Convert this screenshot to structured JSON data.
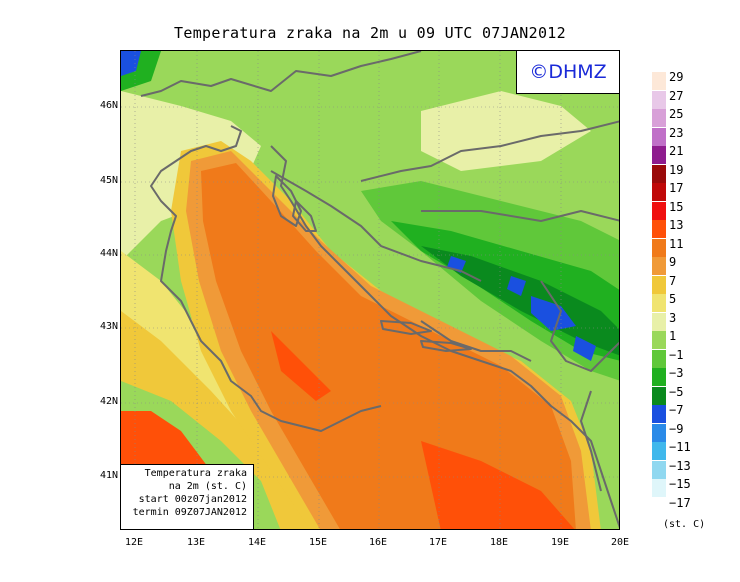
{
  "title": "Temperatura zraka na 2m u 09 UTC 07JAN2012",
  "logo": "©DHMZ",
  "infobox": {
    "line1": "Temperatura zraka",
    "line2": "na 2m (st. C)",
    "line3": "start 00z07jan2012",
    "line4": "termin 09Z07JAN2012"
  },
  "axes": {
    "lat_labels": [
      "46N",
      "45N",
      "44N",
      "43N",
      "42N",
      "41N"
    ],
    "lon_labels": [
      "12E",
      "13E",
      "14E",
      "15E",
      "16E",
      "17E",
      "18E",
      "19E",
      "20E"
    ]
  },
  "legend": {
    "units": "(st. C)",
    "labels": [
      "29",
      "27",
      "25",
      "23",
      "21",
      "19",
      "17",
      "15",
      "13",
      "11",
      "9",
      "7",
      "5",
      "3",
      "1",
      "−1",
      "−3",
      "−5",
      "−7",
      "−9",
      "−11",
      "−13",
      "−15",
      "−17"
    ],
    "colors": [
      "#fde8d8",
      "#e8c8e8",
      "#d8a0d8",
      "#c070c8",
      "#8e1c8e",
      "#9a0a0a",
      "#c00808",
      "#f01010",
      "#ff5008",
      "#f07a1a",
      "#f09a38",
      "#f0c83a",
      "#f0e470",
      "#e8f0a8",
      "#9ad85a",
      "#60c83a",
      "#20b020",
      "#0a8a1e",
      "#1a50e0",
      "#2a8ae8",
      "#40b8ec",
      "#90d8f0",
      "#dff6fa",
      "#ffffff"
    ]
  },
  "map_colors": {
    "sea_warm": "#f07a1a",
    "sea_hot": "#ff5008",
    "sea_mid": "#f09a38",
    "coast_warm": "#f0c83a",
    "coast_light": "#f0e470",
    "land_light": "#e8f0a8",
    "land_green": "#9ad85a",
    "land_mid": "#60c83a",
    "land_dark": "#20b020",
    "land_darker": "#0a8a1e",
    "cold_blue": "#1a50e0",
    "border": "#6a6a6a"
  }
}
